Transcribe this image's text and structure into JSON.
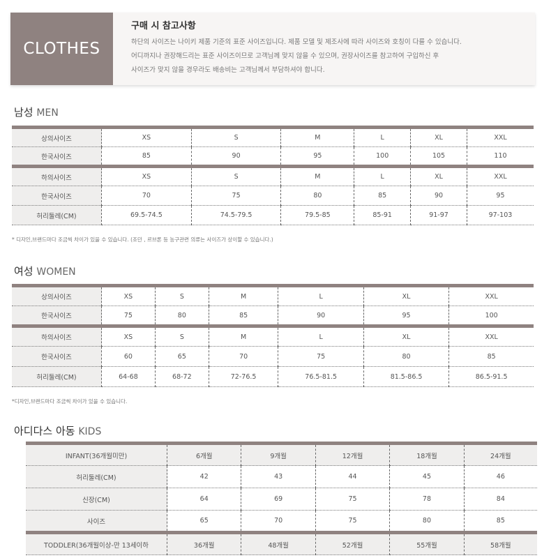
{
  "header": {
    "logo": "CLOTHES",
    "title": "구매 시 참고사항",
    "lines": [
      "하단의 사이즈는 나이키 제품 기준의 표준 사이즈입니다. 제품 모델 및 제조사에 따라 사이즈와 호칭이 다를 수 있습니다.",
      "어디까지나 권장해드리는 표준 사이즈이므로 고객님께 맞지 않을 수 있으며, 권장사이즈를 참고하여 구입하신 후",
      "사이즈가 맞지 않을 경우라도 배송비는 고객님께서 부담하셔야 합니다."
    ]
  },
  "men": {
    "title": "남성",
    "title_en": "MEN",
    "rows": [
      [
        "상의사이즈",
        "XS",
        "S",
        "M",
        "L",
        "XL",
        "XXL"
      ],
      [
        "한국사이즈",
        "85",
        "90",
        "95",
        "100",
        "105",
        "110"
      ],
      [
        "하의사이즈",
        "XS",
        "S",
        "M",
        "L",
        "XL",
        "XXL"
      ],
      [
        "한국사이즈",
        "70",
        "75",
        "80",
        "85",
        "90",
        "95"
      ],
      [
        "허리둘레(CM)",
        "69.5-74.5",
        "74.5-79.5",
        "79.5-85",
        "85-91",
        "91-97",
        "97-103"
      ]
    ],
    "note": "* 디자인,브랜드마다 조금씩 차이가 있을 수 있습니다. (조던 , 르브론 등 농구관련 의류는 사이즈가 상이할 수 있습니다.)"
  },
  "women": {
    "title": "여성",
    "title_en": "WOMEN",
    "rows": [
      [
        "상의사이즈",
        "XS",
        "S",
        "M",
        "L",
        "XL",
        "XXL"
      ],
      [
        "한국사이즈",
        "75",
        "80",
        "85",
        "90",
        "95",
        "100"
      ],
      [
        "하의사이즈",
        "XS",
        "S",
        "M",
        "L",
        "XL",
        "XXL"
      ],
      [
        "한국사이즈",
        "60",
        "65",
        "70",
        "75",
        "80",
        "85"
      ],
      [
        "허리둘레(CM)",
        "64-68",
        "68-72",
        "72-76.5",
        "76.5-81.5",
        "81.5-86.5",
        "86.5-91.5"
      ]
    ],
    "note": "*디자인,브랜드마다 조금씩 차이가 있을 수 있습니다."
  },
  "kids": {
    "title": "아디다스 아동",
    "title_en": "KIDS",
    "rows": [
      [
        "INFANT(36개월미만)",
        "6개월",
        "9개월",
        "12개월",
        "18개월",
        "24개월"
      ],
      [
        "허리둘레(CM)",
        "42",
        "43",
        "44",
        "45",
        "46"
      ],
      [
        "신장(CM)",
        "64",
        "69",
        "75",
        "78",
        "84"
      ],
      [
        "사이즈",
        "65",
        "70",
        "75",
        "80",
        "85"
      ],
      [
        "TODDLER(36개월이상-만 13세이하",
        "36개월",
        "48개월",
        "52개월",
        "55개월",
        "58개월"
      ]
    ]
  }
}
